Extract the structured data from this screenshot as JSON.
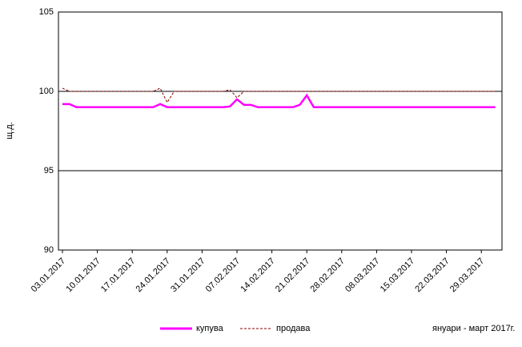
{
  "chart_data": {
    "type": "line",
    "ylabel": "щ.д.",
    "note": "януари - март 2017г.",
    "categories": [
      "03.01.2017",
      null,
      null,
      null,
      null,
      "10.01.2017",
      null,
      null,
      null,
      null,
      "17.01.2017",
      null,
      null,
      null,
      null,
      "24.01.2017",
      null,
      null,
      null,
      null,
      "31.01.2017",
      null,
      null,
      null,
      null,
      "07.02.2017",
      null,
      null,
      null,
      null,
      "14.02.2017",
      null,
      null,
      null,
      null,
      "21.02.2017",
      null,
      null,
      null,
      null,
      "28.02.2017",
      null,
      null,
      null,
      null,
      "08.03.2017",
      null,
      null,
      null,
      null,
      "15.03.2017",
      null,
      null,
      null,
      null,
      "22.03.2017",
      null,
      null,
      null,
      null,
      "29.03.2017",
      null,
      null
    ],
    "series": [
      {
        "name": "купува",
        "color": "#ff00ff",
        "values": [
          99.2,
          99.2,
          99,
          99,
          99,
          99,
          99,
          99,
          99,
          99,
          99,
          99,
          99,
          99,
          99.2,
          99,
          99,
          99,
          99,
          99,
          99,
          99,
          99,
          99,
          99.05,
          99.5,
          99.15,
          99.15,
          99,
          99,
          99,
          99,
          99,
          99,
          99.15,
          99.75,
          99,
          99,
          99,
          99,
          99,
          99,
          99,
          99,
          99,
          99,
          99,
          99,
          99,
          99,
          99,
          99,
          99,
          99,
          99,
          99,
          99,
          99,
          99,
          99,
          99,
          99,
          99
        ]
      },
      {
        "name": "продава",
        "color": "#800000",
        "dashed": true,
        "values": [
          100.2,
          100,
          100,
          100,
          100,
          100,
          100,
          100,
          100,
          100,
          100,
          100,
          100,
          100,
          100.2,
          99.3,
          100,
          100,
          100,
          100,
          100,
          100,
          100,
          100,
          100.1,
          99.6,
          100,
          100,
          100,
          100,
          100,
          100,
          100,
          100,
          100,
          100,
          100,
          100,
          100,
          100,
          100,
          100,
          100,
          100,
          100,
          100,
          100,
          100,
          100,
          100,
          100,
          100,
          100,
          100,
          100,
          100,
          100,
          100,
          100,
          100,
          100,
          100,
          100
        ]
      }
    ],
    "ylim": [
      90,
      105
    ],
    "yticks": [
      90,
      95,
      100,
      105
    ],
    "grid": true
  }
}
